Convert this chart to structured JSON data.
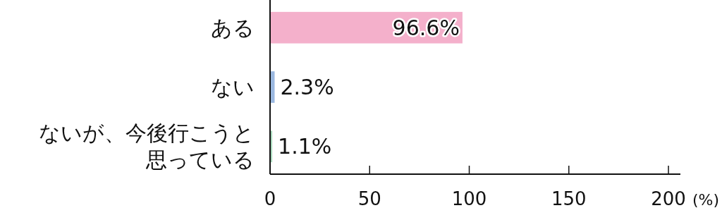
{
  "chart_data": {
    "type": "bar",
    "orientation": "horizontal",
    "categories": [
      "ある",
      "ない",
      "ないが、今後行こうと思っている"
    ],
    "values": [
      96.6,
      2.3,
      1.1
    ],
    "colors": [
      "#f4b0cb",
      "#9bb8e0",
      "#a8d8bc"
    ],
    "value_labels": [
      "96.6%",
      "2.3%",
      "1.1%"
    ],
    "xlabel": "(%)",
    "xlim": [
      0,
      206
    ],
    "xticks": [
      0,
      50,
      100,
      150,
      200
    ],
    "grid": false
  }
}
